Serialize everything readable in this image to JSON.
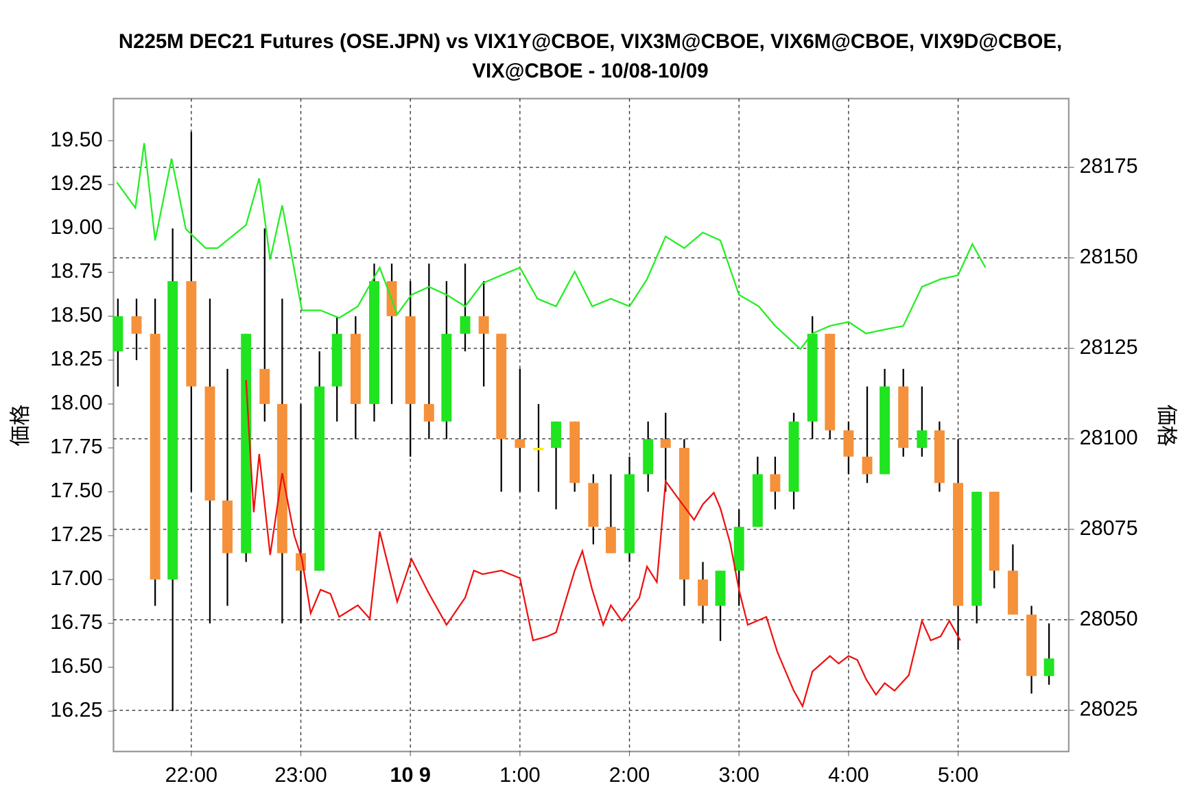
{
  "chart_data": {
    "type": "candlestick",
    "title": [
      "N225M DEC21 Futures (OSE.JPN) vs VIX1Y@CBOE, VIX3M@CBOE, VIX6M@CBOE, VIX9D@CBOE,",
      "VIX@CBOE - 10/08-10/09"
    ],
    "ylabel": "価格",
    "y2label": "価格",
    "xlim": [
      21.29,
      30.01
    ],
    "xticks": [
      {
        "value": 22,
        "label": "22:00"
      },
      {
        "value": 23,
        "label": "23:00"
      },
      {
        "value": 24,
        "label": "10 9",
        "style": "bold"
      },
      {
        "value": 25,
        "label": "1:00"
      },
      {
        "value": 26,
        "label": "2:00"
      },
      {
        "value": 27,
        "label": "3:00"
      },
      {
        "value": 28,
        "label": "4:00"
      },
      {
        "value": 29,
        "label": "5:00"
      }
    ],
    "ylim": [
      16.02,
      19.74
    ],
    "yticks": [
      16.25,
      {
        "value": 16.5,
        "label": "16.50"
      },
      16.75,
      {
        "value": 17,
        "label": "17.00"
      },
      17.25,
      {
        "value": 17.5,
        "label": "17.50"
      },
      17.75,
      {
        "value": 18,
        "label": "18.00"
      },
      18.25,
      {
        "value": 18.5,
        "label": "18.50"
      },
      18.75,
      {
        "value": 19,
        "label": "19.00"
      },
      19.25,
      {
        "value": 19.5,
        "label": "19.50"
      }
    ],
    "y2lim": [
      28013.6,
      28194
    ],
    "y2ticks": [
      28025,
      28050,
      28075,
      28100,
      28125,
      28150,
      28175
    ],
    "grid": true,
    "up_color": "#1fe41f",
    "down_color": "#f5913a",
    "flat_color": "#ffee00",
    "ohlc": {
      "x": [
        21.33,
        21.5,
        21.67,
        21.83,
        22,
        22.17,
        22.33,
        22.5,
        22.67,
        22.83,
        23,
        23.17,
        23.33,
        23.5,
        23.67,
        23.83,
        24,
        24.17,
        24.33,
        24.5,
        24.67,
        24.83,
        25,
        25.17,
        25.33,
        25.5,
        25.67,
        25.83,
        26,
        26.17,
        26.33,
        26.5,
        26.67,
        26.83,
        27,
        27.17,
        27.33,
        27.5,
        27.67,
        27.83,
        28,
        28.17,
        28.33,
        28.5,
        28.67,
        28.83,
        29,
        29.17,
        29.33,
        29.5,
        29.67,
        29.83
      ],
      "open": [
        18.3,
        18.5,
        18.4,
        17,
        18.7,
        18.1,
        17.45,
        17.15,
        18.2,
        18,
        17.15,
        17.05,
        18.1,
        18.4,
        18,
        18.7,
        18.5,
        18,
        17.9,
        18.4,
        18.5,
        18.4,
        17.8,
        17.75,
        17.75,
        17.9,
        17.55,
        17.3,
        17.15,
        17.6,
        17.8,
        17.75,
        17,
        16.85,
        17.05,
        17.3,
        17.6,
        17.5,
        17.9,
        18.4,
        17.85,
        17.7,
        17.6,
        18.1,
        17.75,
        17.85,
        17.55,
        16.85,
        17.5,
        17.05,
        16.8,
        16.45
      ],
      "high": [
        18.6,
        18.6,
        18.6,
        19,
        19.55,
        18.6,
        18.2,
        18.4,
        19,
        18.6,
        18,
        18.3,
        18.5,
        18.5,
        18.8,
        18.8,
        18.7,
        18.8,
        18.7,
        18.8,
        18.7,
        18.4,
        18.2,
        18,
        17.9,
        17.9,
        17.6,
        17.6,
        17.7,
        17.9,
        17.95,
        17.8,
        17.1,
        17.05,
        17.4,
        17.7,
        17.7,
        17.95,
        18.5,
        18.4,
        17.9,
        18.1,
        18.2,
        18.2,
        18.1,
        17.9,
        17.8,
        17.5,
        17.5,
        17.2,
        16.85,
        16.75
      ],
      "low": [
        18.1,
        18.25,
        16.85,
        16.25,
        17.5,
        16.75,
        16.85,
        17.1,
        17.9,
        16.75,
        16.75,
        17.05,
        17.9,
        17.8,
        17.9,
        18,
        17.7,
        17.8,
        17.8,
        18.3,
        18.1,
        17.5,
        17.5,
        17.5,
        17.4,
        17.5,
        17.2,
        17.15,
        17.1,
        17.5,
        17.5,
        16.85,
        16.75,
        16.65,
        16.85,
        17.3,
        17.4,
        17.4,
        17.8,
        17.8,
        17.6,
        17.55,
        17.6,
        17.7,
        17.7,
        17.5,
        16.6,
        16.75,
        16.95,
        16.8,
        16.35,
        16.4
      ],
      "close": [
        18.5,
        18.4,
        17,
        18.7,
        18.1,
        17.45,
        17.15,
        18.4,
        18,
        17.15,
        17.05,
        18.1,
        18.4,
        18,
        18.7,
        18.5,
        18,
        17.9,
        18.4,
        18.5,
        18.4,
        17.8,
        17.75,
        17.75,
        17.9,
        17.55,
        17.3,
        17.15,
        17.6,
        17.8,
        17.75,
        17,
        16.85,
        17.05,
        17.3,
        17.6,
        17.5,
        17.9,
        18.4,
        17.85,
        17.7,
        17.6,
        18.1,
        17.75,
        17.85,
        17.55,
        16.85,
        17.5,
        17.05,
        16.8,
        16.45,
        16.55
      ]
    },
    "series": [
      {
        "color": "#22ee22",
        "axis": "y2",
        "x": [
          21.32,
          21.49,
          21.57,
          21.67,
          21.82,
          21.95,
          22.13,
          22.24,
          22.5,
          22.62,
          22.72,
          22.83,
          23.01,
          23.18,
          23.35,
          23.52,
          23.72,
          23.88,
          24.01,
          24.17,
          24.33,
          24.5,
          24.66,
          24.83,
          25,
          25.16,
          25.33,
          25.5,
          25.66,
          25.83,
          26,
          26.16,
          26.33,
          26.5,
          26.67,
          26.83,
          27,
          27.18,
          27.33,
          27.56,
          27.67,
          27.83,
          28,
          28.16,
          28.33,
          28.5,
          28.67,
          28.84,
          29,
          29.13,
          29.25
        ],
        "values": [
          28170.9,
          28163.8,
          28181.7,
          28154.8,
          28177.4,
          28158,
          28152.7,
          28152.7,
          28159.1,
          28172,
          28149.5,
          28164.5,
          28135.5,
          28135.5,
          28133.4,
          28136.6,
          28147.3,
          28134.4,
          28139.8,
          28142,
          28139.8,
          28136.6,
          28143,
          28145.2,
          28147.3,
          28138.7,
          28136.6,
          28146.2,
          28136.6,
          28138.7,
          28136.6,
          28144.1,
          28155.9,
          28152.7,
          28157,
          28154.8,
          28139.8,
          28136.6,
          28131.2,
          28124.8,
          28129.1,
          28131.2,
          28132.3,
          28129.1,
          28130.2,
          28131.2,
          28142,
          28144.1,
          28145.2,
          28153.8,
          28147.3
        ]
      },
      {
        "color": "#ee1111",
        "axis": "y2",
        "x": [
          22.5,
          22.57,
          22.62,
          22.72,
          22.83,
          22.94,
          23.01,
          23.09,
          23.18,
          23.27,
          23.35,
          23.52,
          23.63,
          23.72,
          23.88,
          24.01,
          24.17,
          24.33,
          24.5,
          24.58,
          24.66,
          24.83,
          25,
          25.12,
          25.25,
          25.33,
          25.5,
          25.57,
          25.66,
          25.76,
          25.83,
          25.93,
          26.09,
          26.16,
          26.25,
          26.33,
          26.46,
          26.59,
          26.67,
          26.77,
          26.83,
          26.92,
          27,
          27.08,
          27.25,
          27.35,
          27.5,
          27.58,
          27.67,
          27.83,
          27.91,
          28,
          28.08,
          28.16,
          28.25,
          28.33,
          28.42,
          28.55,
          28.67,
          28.75,
          28.84,
          28.92,
          29.02
        ],
        "values": [
          28116.2,
          28079.7,
          28095.8,
          28067.9,
          28090.5,
          28073.3,
          28066.8,
          28051.8,
          28058.3,
          28057.2,
          28050.8,
          28054,
          28050.3,
          28074.4,
          28055,
          28066.8,
          28057.2,
          28048.6,
          28056.1,
          28063.6,
          28062.6,
          28063.6,
          28061.5,
          28044.3,
          28045.4,
          28046.5,
          28063.6,
          28069,
          28058.3,
          28048.6,
          28054,
          28049.7,
          28056.1,
          28064.7,
          28060.4,
          28088.3,
          28082.9,
          28077.6,
          28081.9,
          28085.1,
          28080.8,
          28071.1,
          28058.3,
          28048.6,
          28050.8,
          28041.1,
          28030.4,
          28026.1,
          28035.7,
          28040,
          28037.9,
          28040,
          28038.9,
          28033.6,
          28029.3,
          28032.5,
          28030.4,
          28034.7,
          28049.7,
          28044.3,
          28045.4,
          28049.7,
          28044.3
        ]
      }
    ]
  }
}
